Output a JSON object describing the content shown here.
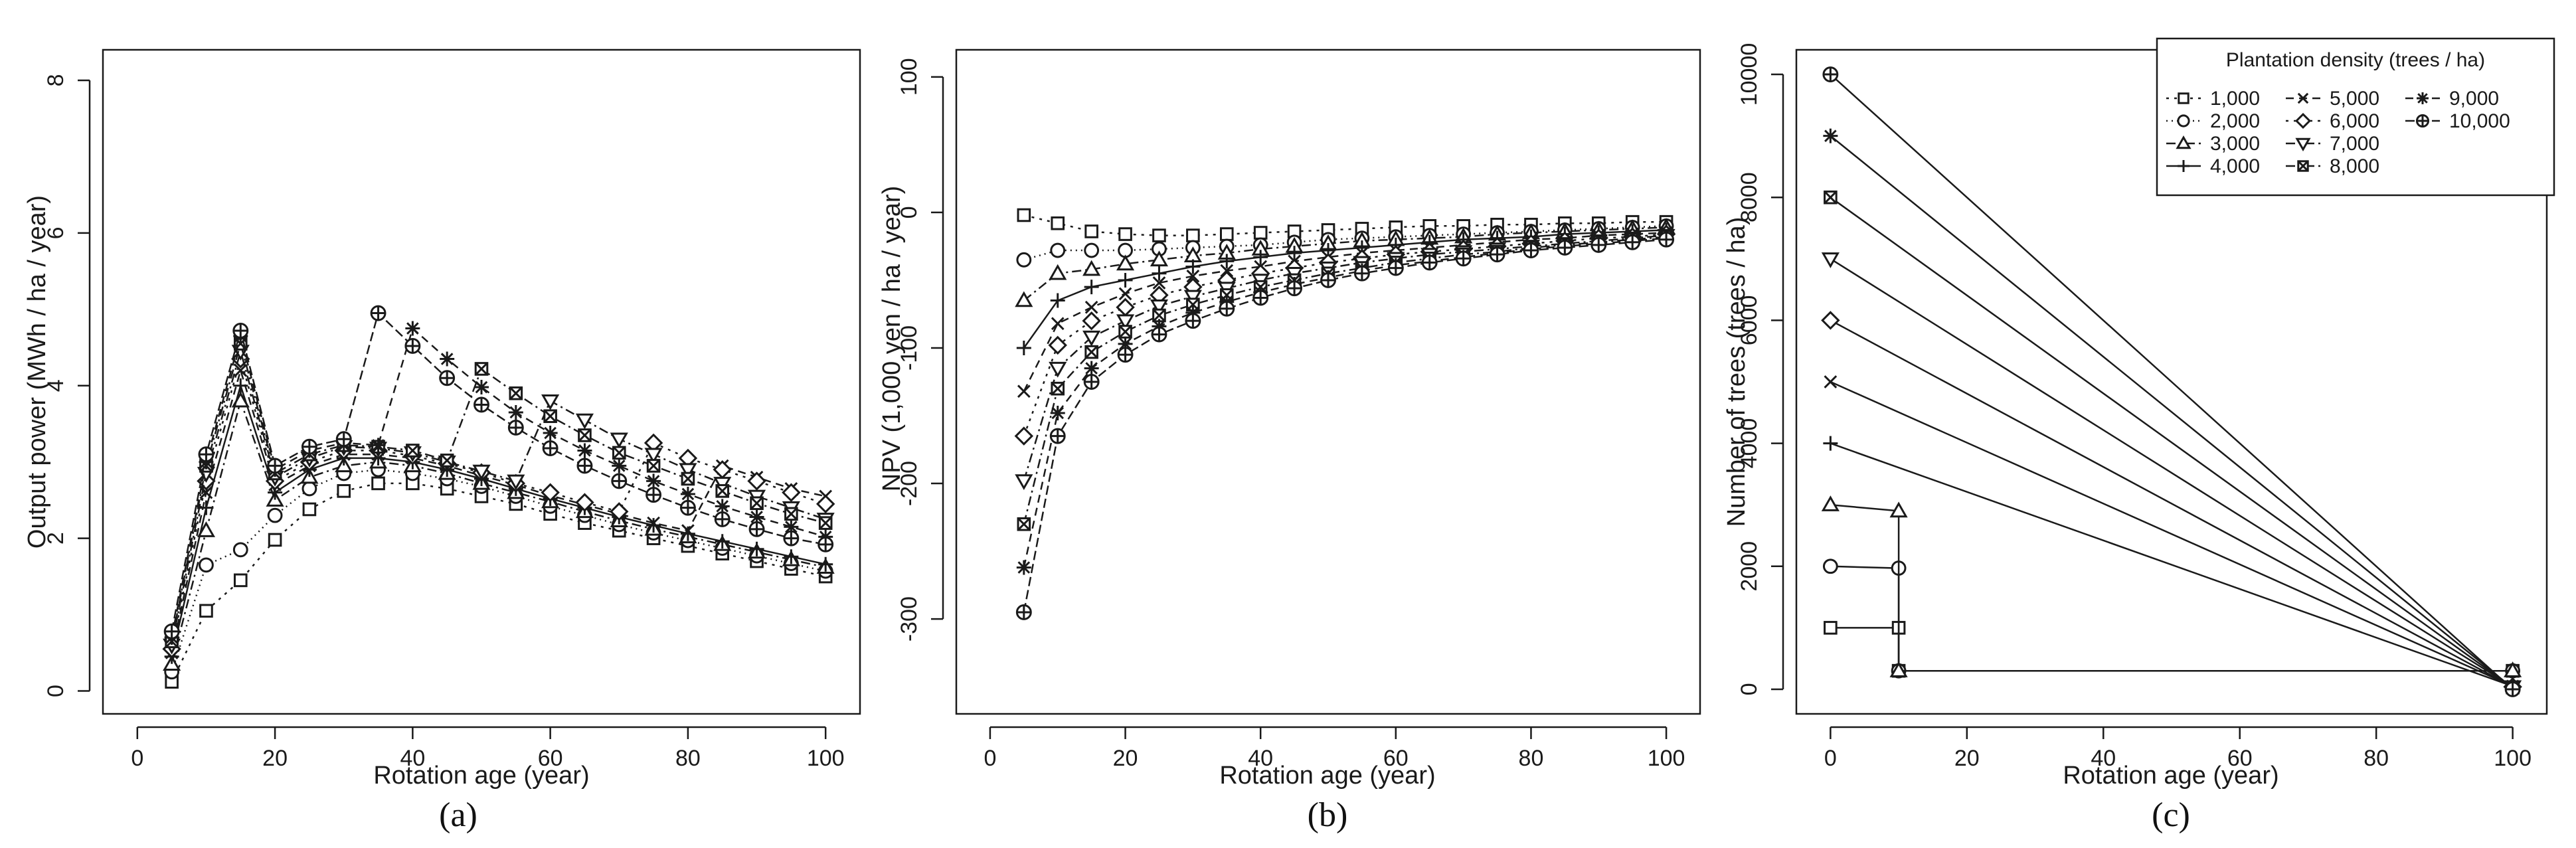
{
  "chart_data": [
    {
      "type": "line",
      "panel_label": "(a)",
      "title": "",
      "xlabel": "Rotation age (year)",
      "ylabel": "Output power (MWh / ha / year)",
      "xlim": [
        -5,
        105
      ],
      "ylim": [
        -0.3,
        8.4
      ],
      "xticks": [
        0,
        20,
        40,
        60,
        80,
        100
      ],
      "xtick_labels": [
        "0",
        "20",
        "40",
        "60",
        "80",
        "100"
      ],
      "yticks": [
        0,
        2,
        4,
        6,
        8
      ],
      "ytick_labels": [
        "0",
        "2",
        "4",
        "6",
        "8"
      ],
      "x": [
        5,
        10,
        15,
        20,
        25,
        30,
        35,
        40,
        45,
        50,
        55,
        60,
        65,
        70,
        75,
        80,
        85,
        90,
        95,
        100
      ],
      "series": [
        {
          "name": "1,000",
          "values": [
            0.12,
            1.05,
            1.45,
            1.98,
            2.38,
            2.62,
            2.72,
            2.72,
            2.65,
            2.55,
            2.45,
            2.32,
            2.2,
            2.1,
            2.0,
            1.9,
            1.8,
            1.7,
            1.6,
            1.5
          ]
        },
        {
          "name": "2,000",
          "values": [
            0.25,
            1.65,
            1.85,
            2.3,
            2.65,
            2.85,
            2.9,
            2.85,
            2.78,
            2.68,
            2.55,
            2.42,
            2.3,
            2.18,
            2.07,
            1.97,
            1.87,
            1.77,
            1.67,
            1.57
          ]
        },
        {
          "name": "3,000",
          "values": [
            0.35,
            2.1,
            3.8,
            2.5,
            2.8,
            2.95,
            3.0,
            2.95,
            2.85,
            2.72,
            2.6,
            2.48,
            2.35,
            2.23,
            2.12,
            2.02,
            1.92,
            1.82,
            1.72,
            1.62
          ]
        },
        {
          "name": "4,000",
          "values": [
            0.45,
            2.4,
            4.0,
            2.6,
            2.9,
            3.05,
            3.05,
            3.0,
            2.9,
            2.78,
            2.65,
            2.52,
            2.4,
            2.28,
            2.17,
            2.06,
            1.96,
            1.86,
            1.76,
            1.66
          ]
        },
        {
          "name": "5,000",
          "values": [
            0.5,
            2.6,
            4.2,
            2.7,
            2.95,
            3.1,
            3.1,
            3.05,
            2.95,
            2.82,
            2.7,
            2.56,
            2.44,
            2.32,
            2.2,
            2.1,
            2.95,
            2.8,
            2.65,
            2.55
          ]
        },
        {
          "name": "6,000",
          "values": [
            0.55,
            2.75,
            4.35,
            2.75,
            3.0,
            3.15,
            3.15,
            3.08,
            2.98,
            2.86,
            2.72,
            2.6,
            2.47,
            2.35,
            3.25,
            3.05,
            2.9,
            2.75,
            2.6,
            2.45
          ]
        },
        {
          "name": "7,000",
          "values": [
            0.6,
            2.85,
            4.45,
            2.8,
            3.05,
            3.2,
            3.18,
            3.12,
            3.0,
            2.88,
            2.75,
            3.8,
            3.55,
            3.3,
            3.1,
            2.9,
            2.72,
            2.55,
            2.4,
            2.25
          ]
        },
        {
          "name": "8,000",
          "values": [
            0.65,
            2.95,
            4.55,
            2.85,
            3.1,
            3.22,
            3.2,
            3.15,
            3.02,
            4.22,
            3.9,
            3.6,
            3.35,
            3.12,
            2.95,
            2.78,
            2.62,
            2.46,
            2.32,
            2.2
          ]
        },
        {
          "name": "9,000",
          "values": [
            0.7,
            3.0,
            4.65,
            2.9,
            3.15,
            3.25,
            3.22,
            4.75,
            4.35,
            3.98,
            3.65,
            3.38,
            3.15,
            2.95,
            2.75,
            2.58,
            2.42,
            2.28,
            2.15,
            2.02
          ]
        },
        {
          "name": "10,000",
          "values": [
            0.78,
            3.1,
            4.72,
            2.95,
            3.2,
            3.3,
            4.95,
            4.52,
            4.1,
            3.75,
            3.45,
            3.18,
            2.95,
            2.75,
            2.57,
            2.4,
            2.25,
            2.12,
            2.0,
            1.92
          ]
        }
      ]
    },
    {
      "type": "line",
      "panel_label": "(b)",
      "title": "",
      "xlabel": "Rotation age (year)",
      "ylabel": "NPV (1,000 yen / ha / year)",
      "xlim": [
        -5,
        105
      ],
      "ylim": [
        -370,
        120
      ],
      "xticks": [
        0,
        20,
        40,
        60,
        80,
        100
      ],
      "xtick_labels": [
        "0",
        "20",
        "40",
        "60",
        "80",
        "100"
      ],
      "yticks": [
        -300,
        -200,
        -100,
        0,
        100
      ],
      "ytick_labels": [
        "-300",
        "-200",
        "-100",
        "0",
        "100"
      ],
      "x": [
        5,
        10,
        15,
        20,
        25,
        30,
        35,
        40,
        45,
        50,
        55,
        60,
        65,
        70,
        75,
        80,
        85,
        90,
        95,
        100
      ],
      "series": [
        {
          "name": "1,000",
          "values": [
            -2,
            -8,
            -14,
            -16,
            -17,
            -17,
            -16,
            -15,
            -14,
            -13,
            -12,
            -11,
            -10,
            -10,
            -9,
            -9,
            -8,
            -8,
            -7,
            -7
          ]
        },
        {
          "name": "2,000",
          "values": [
            -35,
            -28,
            -28,
            -28,
            -27,
            -26,
            -25,
            -24,
            -22,
            -20,
            -19,
            -18,
            -17,
            -16,
            -15,
            -14,
            -13,
            -12,
            -11,
            -10
          ]
        },
        {
          "name": "3,000",
          "values": [
            -65,
            -45,
            -42,
            -38,
            -35,
            -32,
            -30,
            -27,
            -25,
            -23,
            -21,
            -20,
            -19,
            -18,
            -16,
            -15,
            -14,
            -13,
            -12,
            -11
          ]
        },
        {
          "name": "4,000",
          "values": [
            -100,
            -65,
            -55,
            -50,
            -45,
            -40,
            -36,
            -33,
            -30,
            -28,
            -26,
            -24,
            -22,
            -20,
            -19,
            -18,
            -16,
            -15,
            -14,
            -13
          ]
        },
        {
          "name": "5,000",
          "values": [
            -132,
            -82,
            -70,
            -60,
            -52,
            -47,
            -43,
            -40,
            -36,
            -33,
            -30,
            -28,
            -26,
            -24,
            -22,
            -20,
            -19,
            -17,
            -16,
            -15
          ]
        },
        {
          "name": "6,000",
          "values": [
            -165,
            -98,
            -80,
            -70,
            -61,
            -55,
            -50,
            -45,
            -41,
            -37,
            -34,
            -31,
            -29,
            -27,
            -25,
            -23,
            -21,
            -19,
            -18,
            -16
          ]
        },
        {
          "name": "7,000",
          "values": [
            -198,
            -115,
            -92,
            -80,
            -69,
            -62,
            -56,
            -50,
            -45,
            -41,
            -37,
            -34,
            -31,
            -29,
            -27,
            -25,
            -23,
            -21,
            -19,
            -17
          ]
        },
        {
          "name": "8,000",
          "values": [
            -230,
            -130,
            -103,
            -88,
            -76,
            -68,
            -61,
            -55,
            -50,
            -45,
            -41,
            -37,
            -34,
            -31,
            -29,
            -26,
            -24,
            -22,
            -20,
            -18
          ]
        },
        {
          "name": "9,000",
          "values": [
            -262,
            -148,
            -115,
            -97,
            -84,
            -74,
            -66,
            -59,
            -53,
            -48,
            -43,
            -39,
            -36,
            -33,
            -30,
            -27,
            -25,
            -23,
            -21,
            -19
          ]
        },
        {
          "name": "10,000",
          "values": [
            -295,
            -165,
            -125,
            -105,
            -90,
            -80,
            -71,
            -63,
            -56,
            -50,
            -45,
            -41,
            -37,
            -34,
            -31,
            -28,
            -26,
            -24,
            -22,
            -20
          ]
        }
      ]
    },
    {
      "type": "line",
      "panel_label": "(c)",
      "title": "",
      "xlabel": "Rotation age (year)",
      "ylabel": "Number of trees (trees / ha)",
      "xlim": [
        -5,
        105
      ],
      "ylim": [
        -400,
        10400
      ],
      "xticks": [
        0,
        20,
        40,
        60,
        80,
        100
      ],
      "xtick_labels": [
        "0",
        "20",
        "40",
        "60",
        "80",
        "100"
      ],
      "yticks": [
        0,
        2000,
        4000,
        6000,
        8000,
        10000
      ],
      "ytick_labels": [
        "0",
        "2000",
        "4000",
        "6000",
        "8000",
        "10000"
      ],
      "series": [
        {
          "name": "1,000",
          "points": [
            [
              0,
              1000
            ],
            [
              10,
              1000
            ],
            [
              10,
              300
            ],
            [
              100,
              300
            ]
          ]
        },
        {
          "name": "2,000",
          "points": [
            [
              0,
              2000
            ],
            [
              10,
              1970
            ],
            [
              10,
              300
            ],
            [
              100,
              300
            ]
          ]
        },
        {
          "name": "3,000",
          "points": [
            [
              0,
              3000
            ],
            [
              10,
              2900
            ],
            [
              10,
              300
            ],
            [
              100,
              300
            ]
          ]
        },
        {
          "name": "4,000",
          "points": [
            [
              0,
              4000
            ],
            [
              100,
              50
            ]
          ]
        },
        {
          "name": "5,000",
          "points": [
            [
              0,
              5000
            ],
            [
              100,
              50
            ]
          ]
        },
        {
          "name": "6,000",
          "points": [
            [
              0,
              6000
            ],
            [
              100,
              40
            ]
          ]
        },
        {
          "name": "7,000",
          "points": [
            [
              0,
              7000
            ],
            [
              100,
              40
            ]
          ]
        },
        {
          "name": "8,000",
          "points": [
            [
              0,
              8000
            ],
            [
              100,
              30
            ]
          ]
        },
        {
          "name": "9,000",
          "points": [
            [
              0,
              9000
            ],
            [
              100,
              20
            ]
          ]
        },
        {
          "name": "10,000",
          "points": [
            [
              0,
              10000
            ],
            [
              100,
              0
            ]
          ]
        }
      ],
      "legend": {
        "title": "Plantation density (trees / ha)",
        "position": "top-right",
        "entries": [
          "1,000",
          "2,000",
          "3,000",
          "4,000",
          "5,000",
          "6,000",
          "7,000",
          "8,000",
          "9,000",
          "10,000"
        ]
      }
    }
  ],
  "style": {
    "line_color": "#1a1a1a",
    "background": "#ffffff"
  },
  "series_styles": [
    {
      "pch": "square",
      "dash": "4 8"
    },
    {
      "pch": "circle",
      "dash": "2 6"
    },
    {
      "pch": "triangle",
      "dash": "14 6 3 6"
    },
    {
      "pch": "plus",
      "dash": ""
    },
    {
      "pch": "x",
      "dash": "12 8"
    },
    {
      "pch": "diamond",
      "dash": "4 8"
    },
    {
      "pch": "triangle-down",
      "dash": "14 6 3 6"
    },
    {
      "pch": "boxed-x",
      "dash": "14 6 3 6"
    },
    {
      "pch": "star",
      "dash": "12 8"
    },
    {
      "pch": "circle-plus",
      "dash": "14 6"
    }
  ]
}
